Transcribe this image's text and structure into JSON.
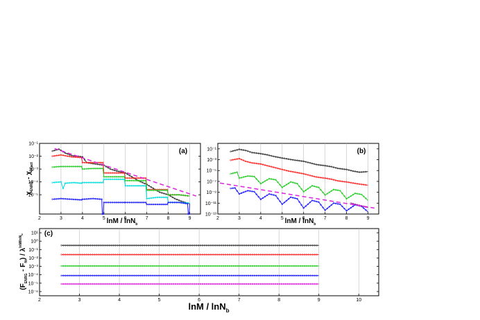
{
  "chart_data": [
    {
      "panel": "a",
      "type": "line",
      "panel_label": "(a)",
      "xlabel": "lnM / lnN_b",
      "ylabel": "χ_ENRG - χ_exact",
      "xlim": [
        2,
        9.5
      ],
      "ylim_log10": [
        -6.5,
        -1
      ],
      "yscale": "log",
      "grid": "vertical",
      "x_ticks": [
        2,
        3,
        4,
        5,
        6,
        7,
        8,
        9
      ],
      "y_tick_exponents": [
        -1,
        -2,
        -3,
        -4,
        -5
      ],
      "series": [
        {
          "color": "#333333",
          "values": [
            [
              2.6,
              -1.6
            ],
            [
              2.9,
              -1.45
            ],
            [
              3.2,
              -1.75
            ],
            [
              3.5,
              -1.95
            ],
            [
              4.0,
              -2.05
            ],
            [
              4.2,
              -2.5
            ],
            [
              4.6,
              -2.6
            ],
            [
              5.0,
              -2.7
            ],
            [
              5.3,
              -3.0
            ],
            [
              5.6,
              -3.15
            ],
            [
              6.0,
              -3.3
            ],
            [
              6.3,
              -3.6
            ],
            [
              6.6,
              -3.9
            ],
            [
              7.0,
              -4.2
            ],
            [
              7.3,
              -4.5
            ],
            [
              7.6,
              -4.8
            ],
            [
              8.0,
              -5.0
            ],
            [
              8.3,
              -5.3
            ],
            [
              8.6,
              -5.5
            ],
            [
              9.0,
              -5.7
            ]
          ]
        },
        {
          "color": "#ff2222",
          "values": [
            [
              2.6,
              -2.0
            ],
            [
              3.0,
              -1.9
            ],
            [
              3.5,
              -2.05
            ],
            [
              3.95,
              -2.1
            ],
            [
              4.0,
              -2.5
            ],
            [
              4.5,
              -2.5
            ],
            [
              4.95,
              -2.5
            ],
            [
              5.0,
              -3.3
            ],
            [
              5.5,
              -3.3
            ],
            [
              5.95,
              -3.3
            ],
            [
              6.0,
              -3.7
            ],
            [
              6.5,
              -3.7
            ],
            [
              6.95,
              -3.7
            ],
            [
              7.0,
              -4.6
            ],
            [
              7.5,
              -4.6
            ],
            [
              7.95,
              -4.6
            ],
            [
              8.0,
              -5.0
            ],
            [
              8.5,
              -5.0
            ],
            [
              9.0,
              -5.1
            ]
          ]
        },
        {
          "color": "#22cc22",
          "values": [
            [
              2.6,
              -2.85
            ],
            [
              3.0,
              -2.8
            ],
            [
              3.5,
              -2.8
            ],
            [
              3.95,
              -2.8
            ],
            [
              4.0,
              -3.0
            ],
            [
              4.5,
              -2.95
            ],
            [
              4.95,
              -2.95
            ],
            [
              5.0,
              -3.6
            ],
            [
              5.5,
              -3.6
            ],
            [
              5.95,
              -3.6
            ],
            [
              6.0,
              -3.9
            ],
            [
              6.5,
              -3.9
            ],
            [
              6.95,
              -3.9
            ],
            [
              7.0,
              -4.65
            ],
            [
              7.5,
              -4.65
            ],
            [
              7.95,
              -4.65
            ],
            [
              8.0,
              -5.0
            ],
            [
              8.5,
              -5.0
            ],
            [
              9.0,
              -5.1
            ]
          ]
        },
        {
          "color": "#00dddd",
          "values": [
            [
              2.6,
              -4.05
            ],
            [
              3.0,
              -4.0
            ],
            [
              3.1,
              -4.5
            ],
            [
              3.2,
              -4.1
            ],
            [
              3.6,
              -4.05
            ],
            [
              3.95,
              -4.1
            ],
            [
              4.0,
              -4.05
            ],
            [
              4.5,
              -4.05
            ],
            [
              4.95,
              -4.05
            ],
            [
              5.0,
              -3.8
            ],
            [
              5.5,
              -3.8
            ],
            [
              5.95,
              -3.8
            ],
            [
              6.0,
              -4.3
            ],
            [
              6.5,
              -4.3
            ],
            [
              6.95,
              -4.3
            ],
            [
              7.0,
              -5.3
            ],
            [
              7.5,
              -5.2
            ],
            [
              7.95,
              -5.2
            ],
            [
              8.0,
              -5.6
            ],
            [
              8.5,
              -5.6
            ],
            [
              9.0,
              -5.65
            ]
          ]
        },
        {
          "color": "#1a1aff",
          "values": [
            [
              2.6,
              -5.35
            ],
            [
              3.0,
              -5.3
            ],
            [
              3.5,
              -5.35
            ],
            [
              3.95,
              -5.4
            ],
            [
              4.0,
              -5.35
            ],
            [
              4.5,
              -5.3
            ],
            [
              4.9,
              -5.35
            ],
            [
              4.93,
              -6.5
            ],
            [
              4.97,
              -6.5
            ],
            [
              5.0,
              -5.6
            ],
            [
              5.5,
              -5.6
            ],
            [
              5.95,
              -5.6
            ],
            [
              6.0,
              -5.6
            ],
            [
              6.5,
              -5.6
            ],
            [
              6.95,
              -5.6
            ],
            [
              7.0,
              -5.75
            ],
            [
              7.5,
              -5.75
            ],
            [
              7.95,
              -5.75
            ],
            [
              8.0,
              -5.6
            ],
            [
              8.5,
              -5.6
            ],
            [
              8.9,
              -5.7
            ],
            [
              8.93,
              -6.5
            ],
            [
              8.97,
              -6.5
            ],
            [
              9.0,
              -5.7
            ]
          ]
        }
      ],
      "reference_line": {
        "color": "#dd22dd",
        "style": "dashed",
        "points": [
          [
            2.7,
            -1.4
          ],
          [
            9.3,
            -5.1
          ]
        ]
      }
    },
    {
      "panel": "b",
      "type": "line",
      "panel_label": "(b)",
      "xlabel": "lnM / lnN_b",
      "xlim": [
        2,
        9.5
      ],
      "ylim_log10": [
        -13,
        0
      ],
      "yscale": "log",
      "grid": "vertical",
      "x_ticks": [
        2,
        3,
        4,
        5,
        6,
        7,
        8,
        9
      ],
      "y_tick_exponents": [
        -1,
        -3,
        -5,
        -7,
        -9,
        -11,
        -13
      ],
      "series": [
        {
          "color": "#333333",
          "values": [
            [
              2.6,
              -1.5
            ],
            [
              3.0,
              -1.1
            ],
            [
              3.3,
              -1.3
            ],
            [
              3.6,
              -1.7
            ],
            [
              4.0,
              -1.9
            ],
            [
              4.3,
              -2.1
            ],
            [
              4.6,
              -2.4
            ],
            [
              5.0,
              -2.7
            ],
            [
              5.3,
              -2.9
            ],
            [
              5.6,
              -3.1
            ],
            [
              6.0,
              -3.3
            ],
            [
              6.3,
              -3.6
            ],
            [
              6.6,
              -3.9
            ],
            [
              7.0,
              -4.1
            ],
            [
              7.3,
              -4.3
            ],
            [
              7.6,
              -4.6
            ],
            [
              8.0,
              -4.8
            ],
            [
              8.3,
              -5.1
            ],
            [
              8.6,
              -5.3
            ],
            [
              9.0,
              -5.2
            ]
          ]
        },
        {
          "color": "#ff2222",
          "values": [
            [
              2.6,
              -3.1
            ],
            [
              3.0,
              -2.8
            ],
            [
              3.3,
              -3.3
            ],
            [
              3.6,
              -3.6
            ],
            [
              4.0,
              -3.8
            ],
            [
              4.3,
              -4.1
            ],
            [
              4.6,
              -4.4
            ],
            [
              5.0,
              -4.8
            ],
            [
              5.3,
              -5.1
            ],
            [
              5.6,
              -5.3
            ],
            [
              6.0,
              -5.6
            ],
            [
              6.3,
              -5.9
            ],
            [
              6.6,
              -6.2
            ],
            [
              7.0,
              -6.4
            ],
            [
              7.3,
              -6.6
            ],
            [
              7.6,
              -6.9
            ],
            [
              8.0,
              -7.1
            ],
            [
              8.3,
              -7.3
            ],
            [
              8.6,
              -7.5
            ],
            [
              9.0,
              -7.7
            ]
          ]
        },
        {
          "color": "#22cc22",
          "values": [
            [
              2.6,
              -5.6
            ],
            [
              2.9,
              -5.3
            ],
            [
              3.0,
              -6.4
            ],
            [
              3.4,
              -6.0
            ],
            [
              3.7,
              -6.1
            ],
            [
              4.0,
              -7.4
            ],
            [
              4.4,
              -6.5
            ],
            [
              4.7,
              -6.7
            ],
            [
              5.0,
              -8.1
            ],
            [
              5.4,
              -7.1
            ],
            [
              5.7,
              -7.4
            ],
            [
              6.0,
              -8.9
            ],
            [
              6.4,
              -7.8
            ],
            [
              6.7,
              -8.1
            ],
            [
              7.0,
              -9.5
            ],
            [
              7.4,
              -8.5
            ],
            [
              7.7,
              -8.7
            ],
            [
              8.0,
              -10.2
            ],
            [
              8.4,
              -9.2
            ],
            [
              8.7,
              -9.4
            ],
            [
              9.0,
              -10.5
            ]
          ]
        },
        {
          "color": "#1a1aff",
          "values": [
            [
              2.6,
              -8.3
            ],
            [
              2.8,
              -8.2
            ],
            [
              3.0,
              -9.3
            ],
            [
              3.4,
              -8.7
            ],
            [
              3.7,
              -8.9
            ],
            [
              4.0,
              -10.3
            ],
            [
              4.4,
              -9.3
            ],
            [
              4.7,
              -9.6
            ],
            [
              5.0,
              -11.2
            ],
            [
              5.4,
              -9.9
            ],
            [
              5.7,
              -10.2
            ],
            [
              6.0,
              -11.9
            ],
            [
              6.4,
              -10.5
            ],
            [
              6.7,
              -10.8
            ],
            [
              7.0,
              -12.3
            ],
            [
              7.4,
              -11.0
            ],
            [
              7.7,
              -11.2
            ],
            [
              8.0,
              -12.4
            ],
            [
              8.4,
              -11.3
            ],
            [
              8.7,
              -11.6
            ],
            [
              9.0,
              -12.6
            ]
          ]
        },
        {
          "color": "#aa22aa",
          "values": [
            [
              8.2,
              -11.0
            ],
            [
              8.5,
              -11.3
            ],
            [
              8.8,
              -11.6
            ],
            [
              9.0,
              -11.8
            ]
          ]
        }
      ],
      "reference_line": {
        "color": "#dd22dd",
        "style": "dashed",
        "points": [
          [
            2.1,
            -7.3
          ],
          [
            9.3,
            -11.9
          ]
        ]
      }
    },
    {
      "panel": "c",
      "type": "line",
      "panel_label": "(c)",
      "xlabel": "lnM / lnN_b",
      "ylabel": "(F_ENRG - F_fit) / λ^(lnM/lnN_b)",
      "xlim": [
        2,
        10.5
      ],
      "ylim_log10": [
        -6.5,
        1.5
      ],
      "yscale": "log",
      "grid": "vertical",
      "x_ticks": [
        2,
        3,
        4,
        5,
        6,
        7,
        8,
        9,
        10
      ],
      "y_tick_exponents": [
        1,
        0,
        -1,
        -2,
        -3,
        -4,
        -5,
        -6
      ],
      "series": [
        {
          "color": "#333333",
          "values": [
            [
              2.55,
              -0.5
            ],
            [
              9.0,
              -0.5
            ]
          ]
        },
        {
          "color": "#ff2222",
          "values": [
            [
              2.55,
              -1.6
            ],
            [
              9.0,
              -1.6
            ]
          ]
        },
        {
          "color": "#22cc22",
          "values": [
            [
              2.55,
              -2.95
            ],
            [
              9.0,
              -2.95
            ]
          ]
        },
        {
          "color": "#1a1aff",
          "values": [
            [
              2.55,
              -4.1
            ],
            [
              9.0,
              -4.1
            ]
          ]
        },
        {
          "color": "#dd22dd",
          "values": [
            [
              2.55,
              -5.1
            ],
            [
              9.0,
              -5.1
            ]
          ]
        }
      ]
    }
  ]
}
